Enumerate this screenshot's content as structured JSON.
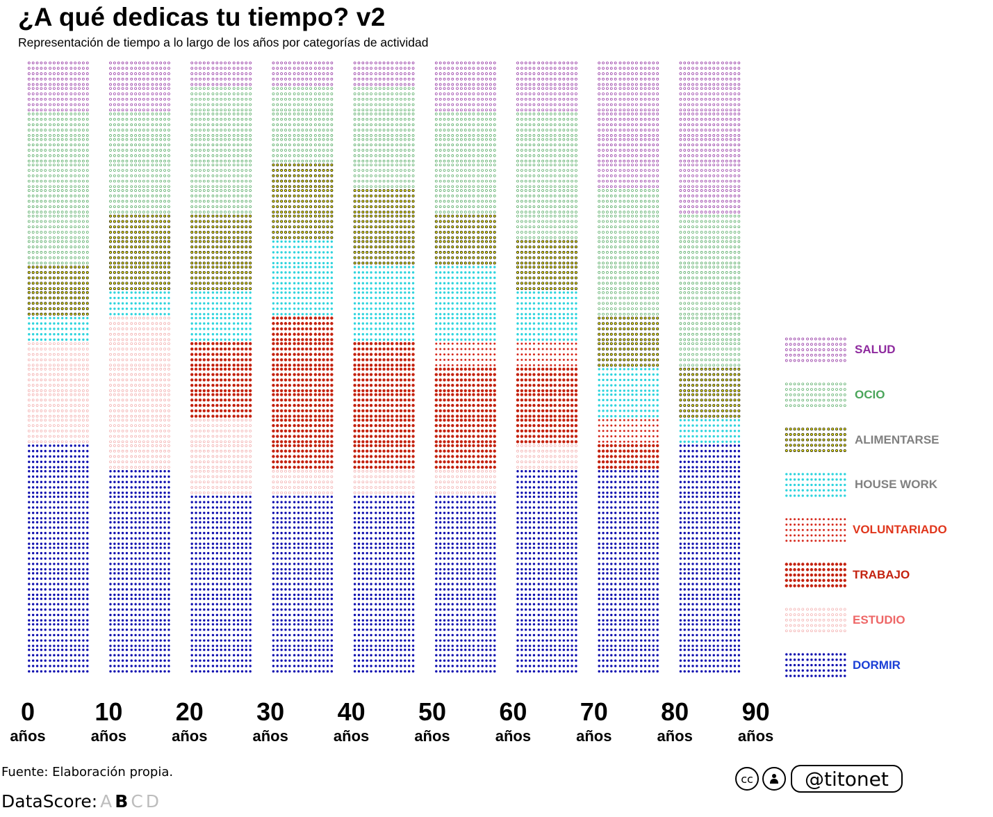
{
  "header": {
    "title": "¿A qué dedicas tu tiempo? v2",
    "subtitle": "Representación de tiempo a lo largo de los años por categorías de actividad"
  },
  "footer": {
    "source": "Fuente: Elaboración propia.",
    "datascore_label": "DataScore:",
    "datascore_grades": [
      "A",
      "B",
      "C",
      "D"
    ],
    "datascore_selected": "B",
    "license_cc": "cc",
    "license_by_icon": "person-icon",
    "handle": "@titonet"
  },
  "chart_data": {
    "type": "waffle",
    "title": "¿A qué dedicas tu tiempo? v2",
    "subtitle": "Representación de tiempo a lo largo de los años por categorías de actividad",
    "x_ticks": [
      {
        "num": "0",
        "unit": "años"
      },
      {
        "num": "10",
        "unit": "años"
      },
      {
        "num": "20",
        "unit": "años"
      },
      {
        "num": "30",
        "unit": "años"
      },
      {
        "num": "40",
        "unit": "años"
      },
      {
        "num": "50",
        "unit": "años"
      },
      {
        "num": "60",
        "unit": "años"
      },
      {
        "num": "70",
        "unit": "años"
      },
      {
        "num": "80",
        "unit": "años"
      },
      {
        "num": "90",
        "unit": "años"
      }
    ],
    "units_per_column": 24,
    "categories": [
      {
        "key": "salud",
        "label": "SALUD",
        "color": "#8e2a9e",
        "label_color": "#8e2a9e",
        "style": "ring"
      },
      {
        "key": "ocio",
        "label": "OCIO",
        "color": "#4aa55a",
        "label_color": "#4aa55a",
        "style": "ring"
      },
      {
        "key": "alimentarse",
        "label": "ALIMENTARSE",
        "color": "#2b2b00",
        "fill": "#e8e020",
        "label_color": "#808080",
        "style": "ring-fill"
      },
      {
        "key": "house_work",
        "label": "HOUSE WORK",
        "color": "#2ed4de",
        "label_color": "#808080",
        "style": "dot"
      },
      {
        "key": "voluntariado",
        "label": "VOLUNTARIADO",
        "color": "#d62a1e",
        "label_color": "#e0361c",
        "style": "dot-small"
      },
      {
        "key": "trabajo",
        "label": "TRABAJO",
        "color": "#c4220f",
        "label_color": "#c4220f",
        "style": "dot-large"
      },
      {
        "key": "estudio",
        "label": "ESTUDIO",
        "color": "#f2a8a8",
        "label_color": "#ee6666",
        "style": "ring"
      },
      {
        "key": "dormir",
        "label": "DORMIR",
        "color": "#1010b0",
        "label_color": "#1a3ed6",
        "style": "dot"
      }
    ],
    "series": [
      {
        "age": "0",
        "units": {
          "dormir": 9,
          "estudio": 4,
          "trabajo": 0,
          "voluntariado": 0,
          "house_work": 1,
          "alimentarse": 2,
          "ocio": 6,
          "salud": 2
        }
      },
      {
        "age": "10",
        "units": {
          "dormir": 8,
          "estudio": 6,
          "trabajo": 0,
          "voluntariado": 0,
          "house_work": 1,
          "alimentarse": 3,
          "ocio": 4,
          "salud": 2
        }
      },
      {
        "age": "20",
        "units": {
          "dormir": 7,
          "estudio": 3,
          "trabajo": 3,
          "voluntariado": 0,
          "house_work": 2,
          "alimentarse": 3,
          "ocio": 5,
          "salud": 1
        }
      },
      {
        "age": "30",
        "units": {
          "dormir": 7,
          "estudio": 1,
          "trabajo": 6,
          "voluntariado": 0,
          "house_work": 3,
          "alimentarse": 3,
          "ocio": 3,
          "salud": 1
        }
      },
      {
        "age": "40",
        "units": {
          "dormir": 7,
          "estudio": 1,
          "trabajo": 5,
          "voluntariado": 0,
          "house_work": 3,
          "alimentarse": 3,
          "ocio": 4,
          "salud": 1
        }
      },
      {
        "age": "50",
        "units": {
          "dormir": 7,
          "estudio": 1,
          "trabajo": 4,
          "voluntariado": 1,
          "house_work": 3,
          "alimentarse": 2,
          "ocio": 4,
          "salud": 2
        }
      },
      {
        "age": "60",
        "units": {
          "dormir": 8,
          "estudio": 1,
          "trabajo": 3,
          "voluntariado": 1,
          "house_work": 2,
          "alimentarse": 2,
          "ocio": 5,
          "salud": 2
        }
      },
      {
        "age": "70",
        "units": {
          "dormir": 8,
          "estudio": 0,
          "trabajo": 1,
          "voluntariado": 1,
          "house_work": 2,
          "alimentarse": 2,
          "ocio": 5,
          "salud": 5
        }
      },
      {
        "age": "80",
        "units": {
          "dormir": 9,
          "estudio": 0,
          "trabajo": 0,
          "voluntariado": 0,
          "house_work": 1,
          "alimentarse": 2,
          "ocio": 6,
          "salud": 6
        }
      }
    ]
  }
}
